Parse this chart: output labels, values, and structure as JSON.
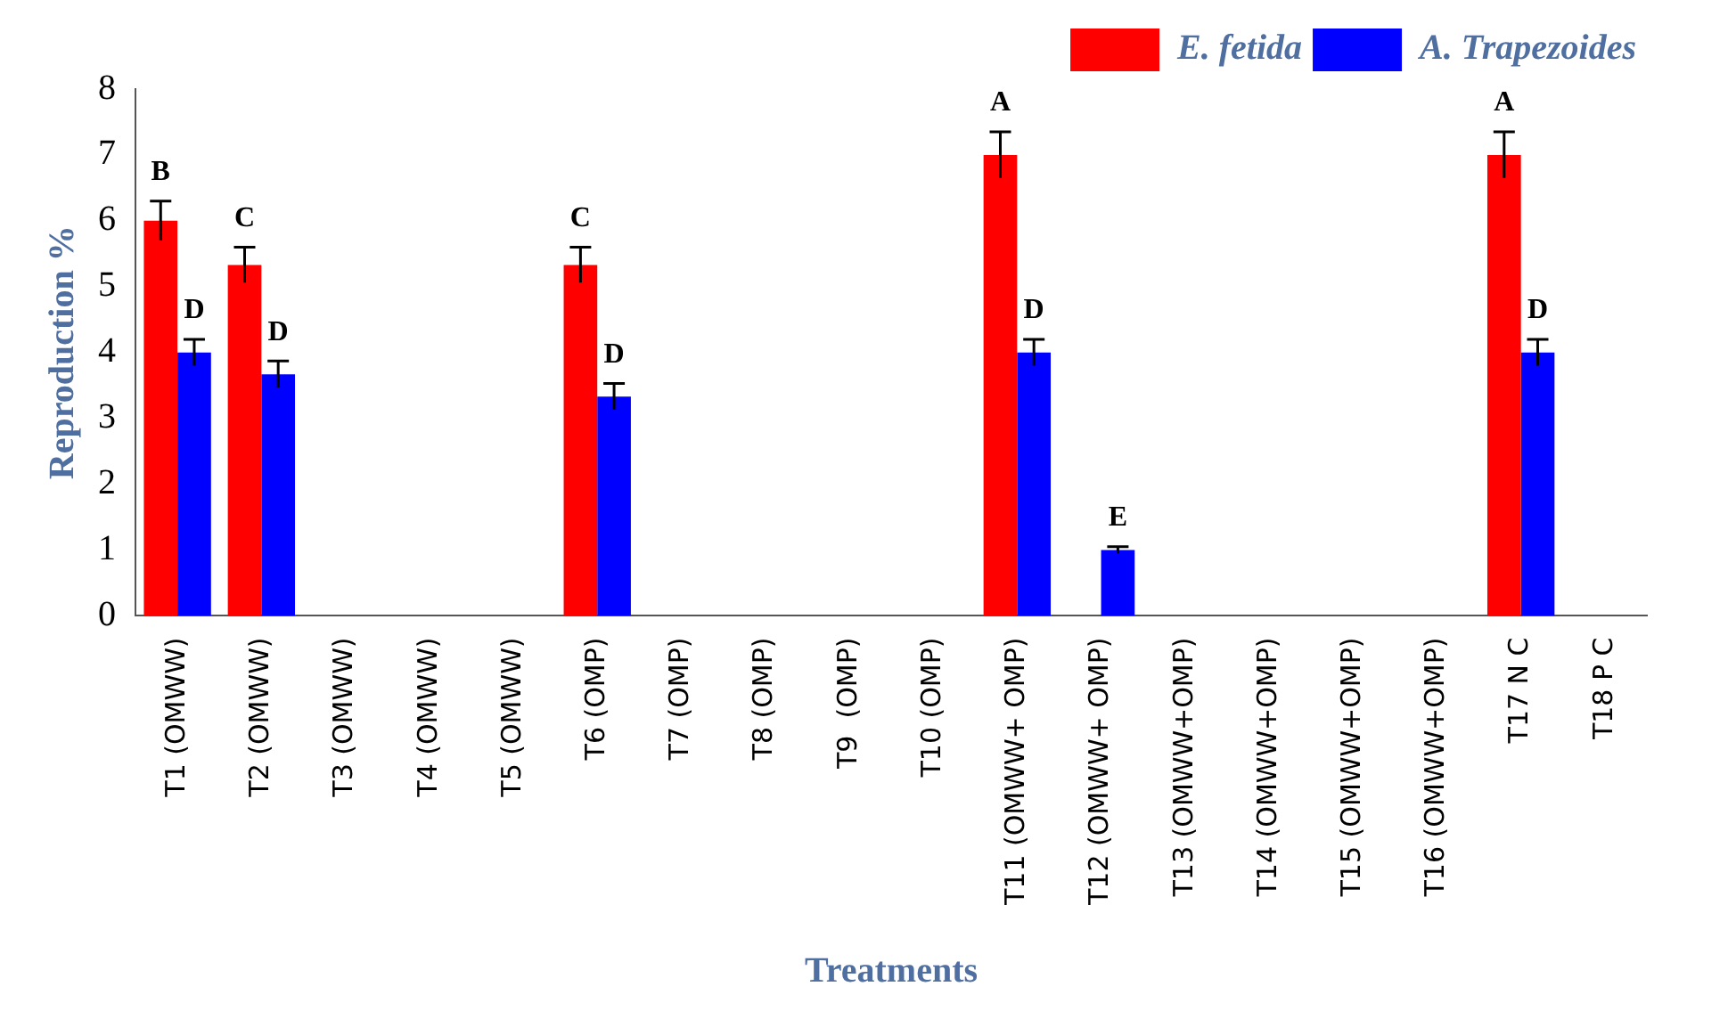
{
  "chart_data": {
    "type": "bar",
    "xlabel": "Treatments",
    "ylabel": "Reproduction %",
    "categories": [
      "T1 (OMWW)",
      "T2 (OMWW)",
      "T3 (OMWW)",
      "T4 (OMWW)",
      "T5 (OMWW)",
      "T6 (OMP)",
      "T7 (OMP)",
      "T8 (OMP)",
      "T9  (OMP)",
      "T10 (OMP)",
      "T11 (OMWW+ OMP)",
      "T12 (OMWW+ OMP)",
      "T13 (OMWW+OMP)",
      "T14 (OMWW+OMP)",
      "T15 (OMWW+OMP)",
      "T16 (OMWW+OMP)",
      "T17 N C",
      "T18 P C"
    ],
    "series": [
      {
        "name": "E. fetida",
        "color": "#ff0000",
        "values": [
          6,
          5.33,
          0,
          0,
          0,
          5.33,
          0,
          0,
          0,
          0,
          7,
          0,
          0,
          0,
          0,
          0,
          7,
          0
        ],
        "errors": [
          0.3,
          0.27,
          null,
          null,
          null,
          0.27,
          null,
          null,
          null,
          null,
          0.35,
          null,
          null,
          null,
          null,
          null,
          0.35,
          null
        ],
        "value_labels": [
          "B",
          "C",
          null,
          null,
          null,
          "C",
          null,
          null,
          null,
          null,
          "A",
          null,
          null,
          null,
          null,
          null,
          "A",
          null
        ]
      },
      {
        "name": "A. Trapezoides",
        "color": "#0000ff",
        "values": [
          4,
          3.67,
          0,
          0,
          0,
          3.33,
          0,
          0,
          0,
          0,
          4,
          1,
          0,
          0,
          0,
          0,
          4,
          0
        ],
        "errors": [
          0.2,
          0.2,
          null,
          null,
          null,
          0.2,
          null,
          null,
          null,
          null,
          0.2,
          0.05,
          null,
          null,
          null,
          null,
          0.2,
          null
        ],
        "value_labels": [
          "D",
          "D",
          null,
          null,
          null,
          "D",
          null,
          null,
          null,
          null,
          "D",
          "E",
          null,
          null,
          null,
          null,
          "D",
          null
        ]
      }
    ],
    "ylim": [
      0,
      8
    ],
    "yticks": [
      0,
      1,
      2,
      3,
      4,
      5,
      6,
      7,
      8
    ],
    "grid": false,
    "legend": "top right"
  }
}
